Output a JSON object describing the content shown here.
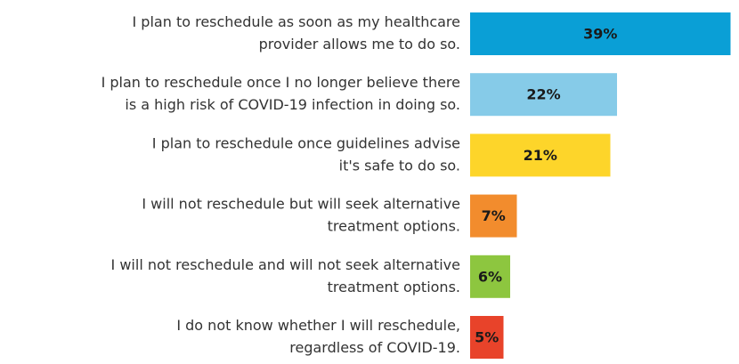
{
  "chart_data": {
    "type": "bar",
    "orientation": "horizontal",
    "categories": [
      [
        "I plan to reschedule as soon as my healthcare",
        "provider allows me to do so."
      ],
      [
        "I plan to reschedule once I no longer believe there",
        "is a high risk of COVID-19 infection in doing so."
      ],
      [
        "I plan to reschedule once guidelines advise",
        "it's safe to do so."
      ],
      [
        "I will not reschedule but will seek alternative",
        "treatment options."
      ],
      [
        "I will not reschedule and will not seek alternative",
        "treatment options."
      ],
      [
        "I do not know whether I will reschedule,",
        "regardless of COVID-19."
      ]
    ],
    "values": [
      39,
      22,
      21,
      7,
      6,
      5
    ],
    "value_labels": [
      "39%",
      "22%",
      "21%",
      "7%",
      "6%",
      "5%"
    ],
    "colors": [
      "#0a9fd6",
      "#86cbe8",
      "#fdd52a",
      "#f28c2d",
      "#8dc63f",
      "#e8432a"
    ]
  }
}
